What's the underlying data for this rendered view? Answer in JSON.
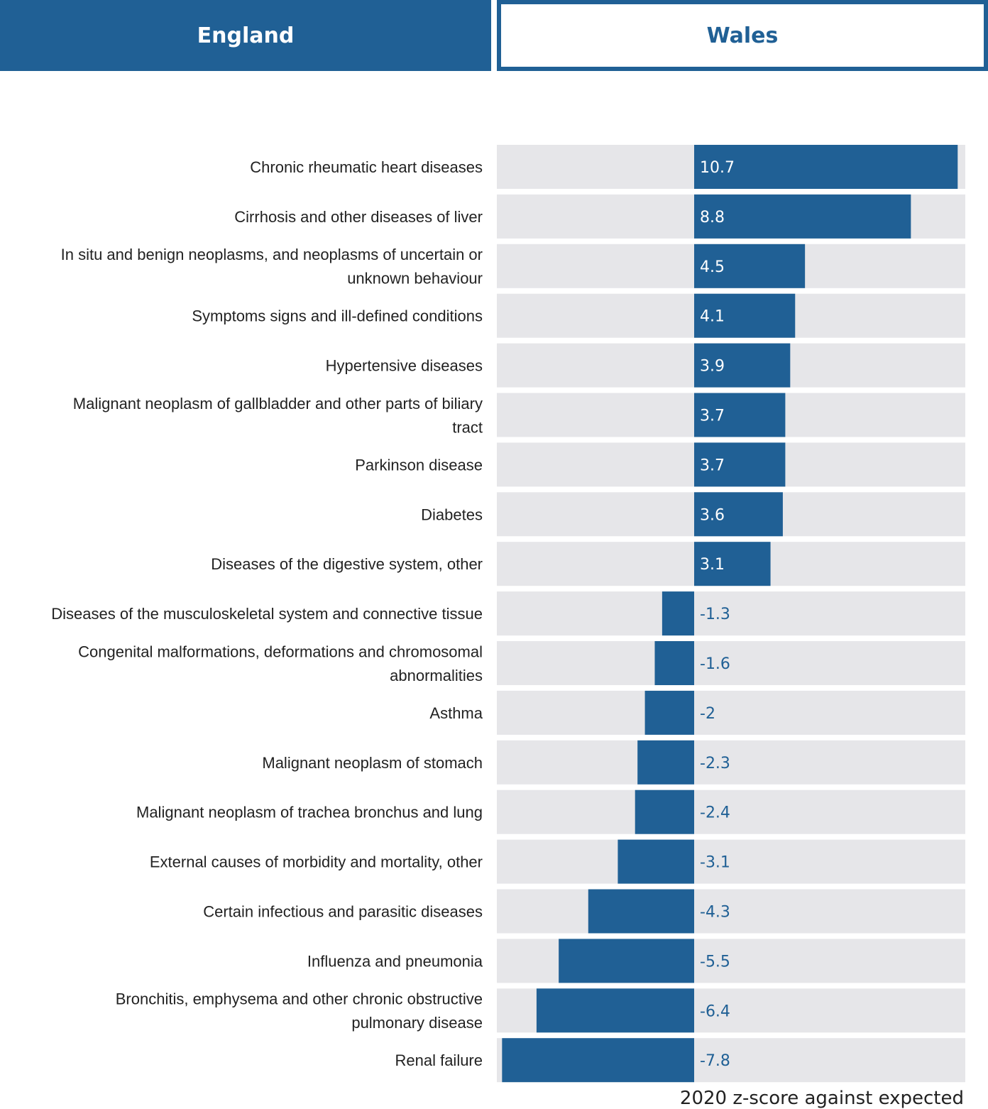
{
  "tabs": [
    {
      "label": "England",
      "active": false
    },
    {
      "label": "Wales",
      "active": true
    }
  ],
  "colors": {
    "bar": "#206095",
    "track": "#e6e6e9",
    "label_on_bar": "#ffffff",
    "label_off_bar": "#206095"
  },
  "chart_data": {
    "type": "bar",
    "orientation": "horizontal",
    "xlabel": "2020 z-score against expected",
    "xlim": [
      -7.8,
      10.7
    ],
    "grid": false,
    "categories": [
      "Chronic rheumatic heart diseases",
      "Cirrhosis and other diseases of liver",
      "In situ and benign neoplasms, and neoplasms of uncertain or unknown behaviour",
      "Symptoms signs and ill-defined conditions",
      "Hypertensive diseases",
      "Malignant neoplasm of gallbladder and other parts of biliary tract",
      "Parkinson disease",
      "Diabetes",
      "Diseases of the digestive system, other",
      "Diseases of the musculoskeletal system and connective tissue",
      "Congenital malformations, deformations and chromosomal abnormalities",
      "Asthma",
      "Malignant neoplasm of stomach",
      "Malignant neoplasm of trachea bronchus and lung",
      "External causes of morbidity and mortality, other",
      "Certain infectious and parasitic diseases",
      "Influenza and pneumonia",
      "Bronchitis, emphysema and other chronic obstructive pulmonary disease",
      "Renal failure"
    ],
    "category_lines": [
      [
        "Chronic rheumatic heart diseases"
      ],
      [
        "Cirrhosis and other diseases of liver"
      ],
      [
        "In situ and benign neoplasms, and neoplasms of uncertain or",
        "unknown behaviour"
      ],
      [
        "Symptoms signs and ill-defined conditions"
      ],
      [
        "Hypertensive diseases"
      ],
      [
        "Malignant neoplasm of gallbladder and other parts of biliary",
        "tract"
      ],
      [
        "Parkinson disease"
      ],
      [
        "Diabetes"
      ],
      [
        "Diseases of the digestive system, other"
      ],
      [
        "Diseases of the musculoskeletal system and connective tissue"
      ],
      [
        "Congenital malformations, deformations and chromosomal",
        "abnormalities"
      ],
      [
        "Asthma"
      ],
      [
        "Malignant neoplasm of stomach"
      ],
      [
        "Malignant neoplasm of trachea bronchus and lung"
      ],
      [
        "External causes of morbidity and mortality, other"
      ],
      [
        "Certain infectious and parasitic diseases"
      ],
      [
        "Influenza and pneumonia"
      ],
      [
        "Bronchitis, emphysema and other chronic obstructive",
        "pulmonary disease"
      ],
      [
        "Renal failure"
      ]
    ],
    "values": [
      10.7,
      8.8,
      4.5,
      4.1,
      3.9,
      3.7,
      3.7,
      3.6,
      3.1,
      -1.3,
      -1.6,
      -2,
      -2.3,
      -2.4,
      -3.1,
      -4.3,
      -5.5,
      -6.4,
      -7.8
    ]
  }
}
